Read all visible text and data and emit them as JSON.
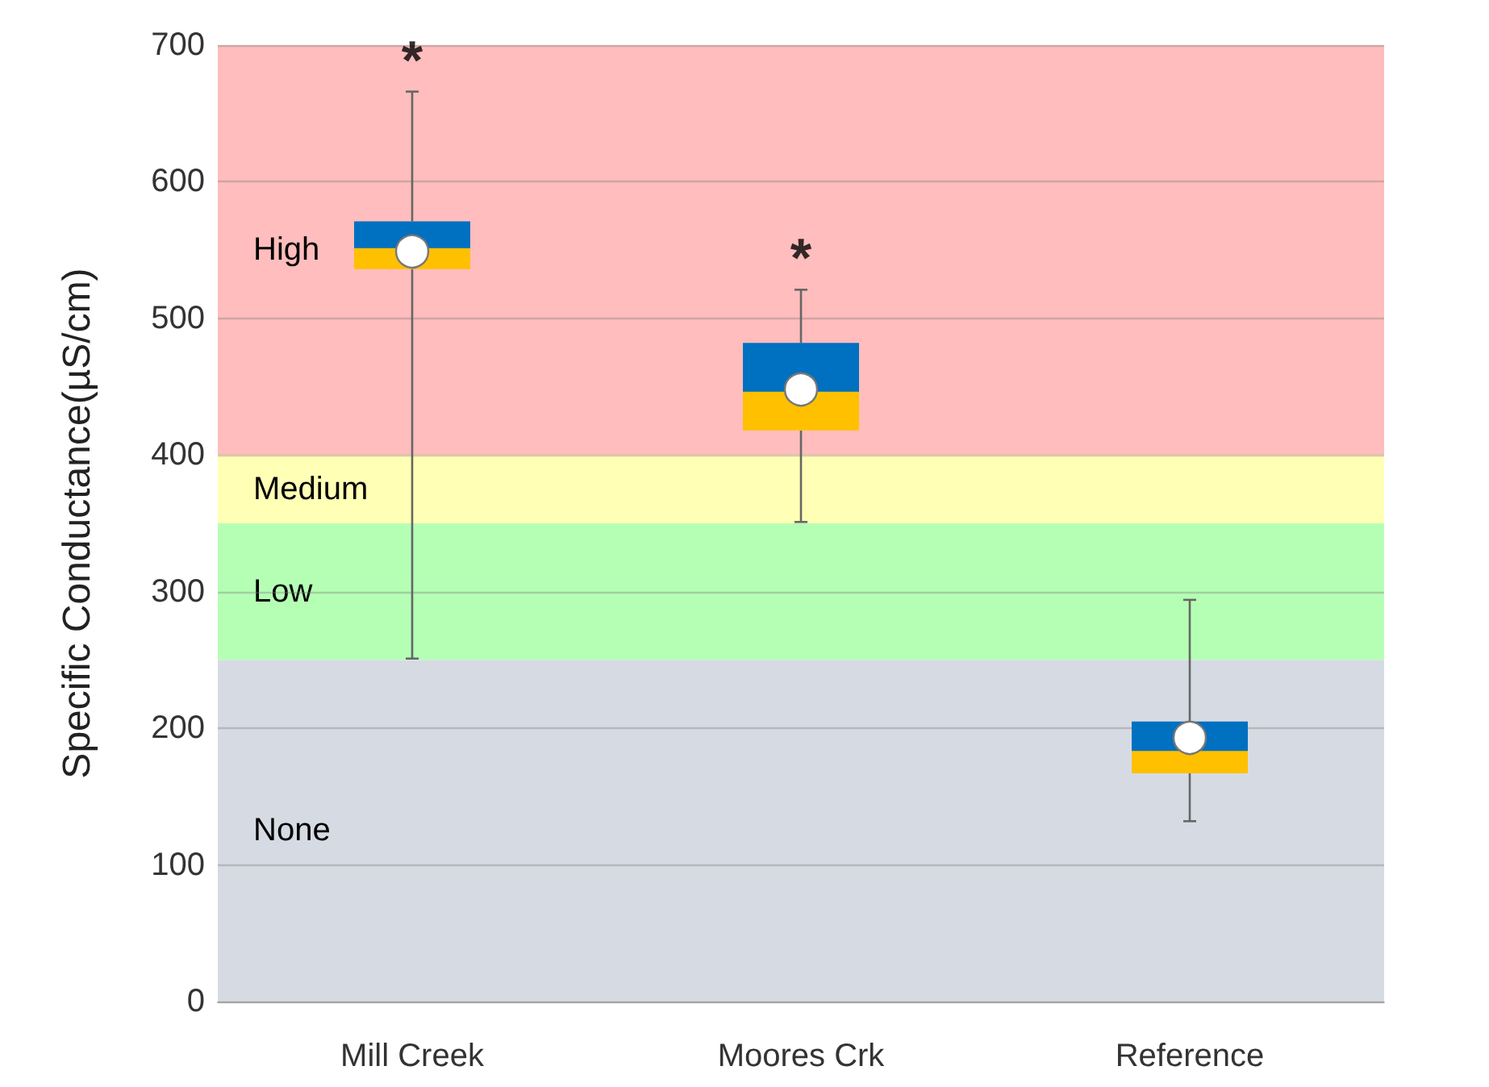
{
  "chart_data": {
    "type": "box",
    "ylabel": "Specific Conductance(µS/cm)",
    "categories": [
      "Mill Creek",
      "Moores Crk",
      "Reference"
    ],
    "series": [
      {
        "color": "#0070c0",
        "boxes": [
          {
            "low": 251,
            "q1": 536,
            "median": 552,
            "q3": 571,
            "high": 666,
            "mean": 549
          },
          {
            "low": 351,
            "q1": 418,
            "median": 447,
            "q3": 482,
            "high": 521,
            "mean": 448
          },
          {
            "low": 132,
            "q1": 167,
            "median": 184,
            "q3": 205,
            "high": 294,
            "mean": 193
          }
        ]
      }
    ],
    "ylim": [
      0,
      700
    ],
    "yticks": [
      0,
      100,
      200,
      300,
      400,
      500,
      600,
      700
    ],
    "grid": "y",
    "marker": "circle",
    "bands": [
      {
        "axis": "y",
        "from": 400,
        "to": 700,
        "label": "High",
        "color": "#ffbdbd"
      },
      {
        "axis": "y",
        "from": 350,
        "to": 400,
        "label": "Medium",
        "color": "#ffffb5"
      },
      {
        "axis": "y",
        "from": 250,
        "to": 350,
        "label": "Low",
        "color": "#b5ffb5"
      },
      {
        "axis": "y",
        "from": 0,
        "to": 250,
        "label": "None",
        "color": "#d6dbe3"
      }
    ],
    "annotations": [
      "*",
      "*"
    ]
  }
}
